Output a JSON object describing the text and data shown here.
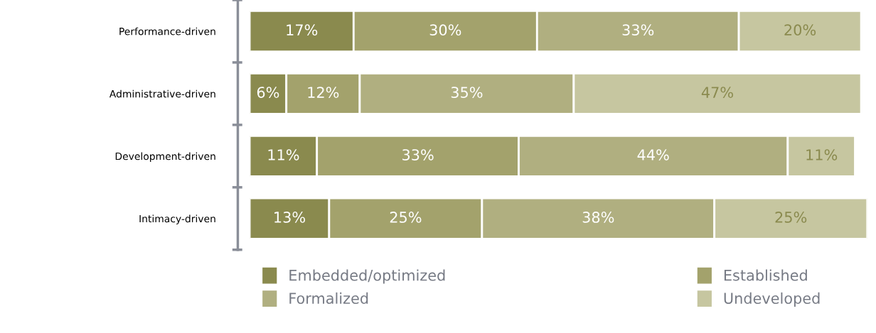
{
  "chart_data": {
    "type": "bar",
    "orientation": "horizontal",
    "stacked": true,
    "legend": "bottom",
    "categories": [
      "Performance-driven",
      "Administrative-driven",
      "Development-driven",
      "Intimacy-driven"
    ],
    "series": [
      {
        "name": "Embedded/optimized",
        "color": "#8a8a4e",
        "values": [
          17,
          6,
          11,
          13
        ],
        "value_labels": [
          "17%",
          "6%",
          "11%",
          "13%"
        ]
      },
      {
        "name": "Established",
        "color": "#a3a26c",
        "values": [
          30,
          12,
          33,
          25
        ],
        "value_labels": [
          "30%",
          "12%",
          "33%",
          "25%"
        ]
      },
      {
        "name": "Formalized",
        "color": "#b0af80",
        "values": [
          33,
          35,
          44,
          38
        ],
        "value_labels": [
          "33%",
          "35%",
          "44%",
          "38%"
        ]
      },
      {
        "name": "Undeveloped",
        "color": "#c6c6a0",
        "values": [
          20,
          47,
          11,
          25
        ],
        "value_labels": [
          "20%",
          "47%",
          "11%",
          "25%"
        ]
      }
    ]
  }
}
